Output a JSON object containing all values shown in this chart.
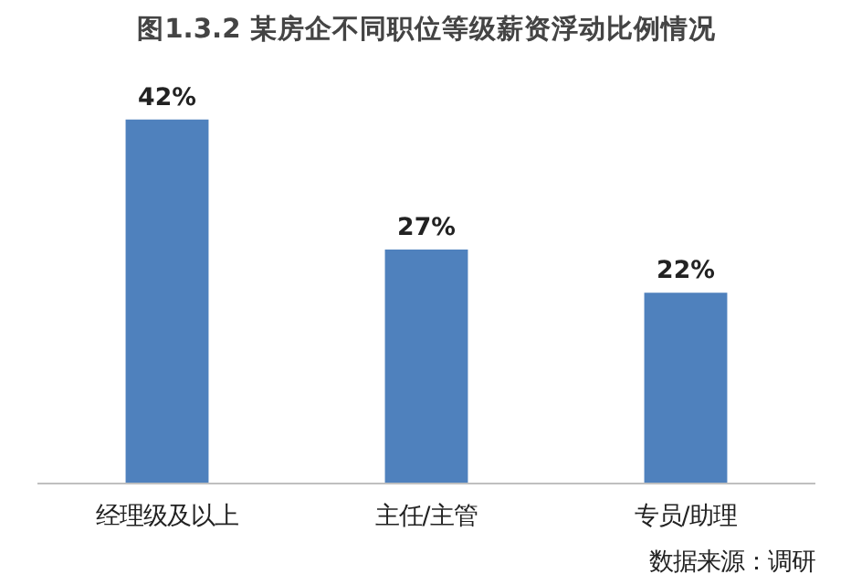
{
  "chart_data": {
    "type": "bar",
    "title": "图1.3.2 某房企不同职位等级薪资浮动比例情况",
    "categories": [
      "经理级及以上",
      "主任/主管",
      "专员/助理"
    ],
    "values": [
      42,
      27,
      22
    ],
    "value_labels": [
      "42%",
      "27%",
      "22%"
    ],
    "color": "#4f81bd",
    "grid": false,
    "annotations": [
      "数据来源：调研"
    ]
  }
}
